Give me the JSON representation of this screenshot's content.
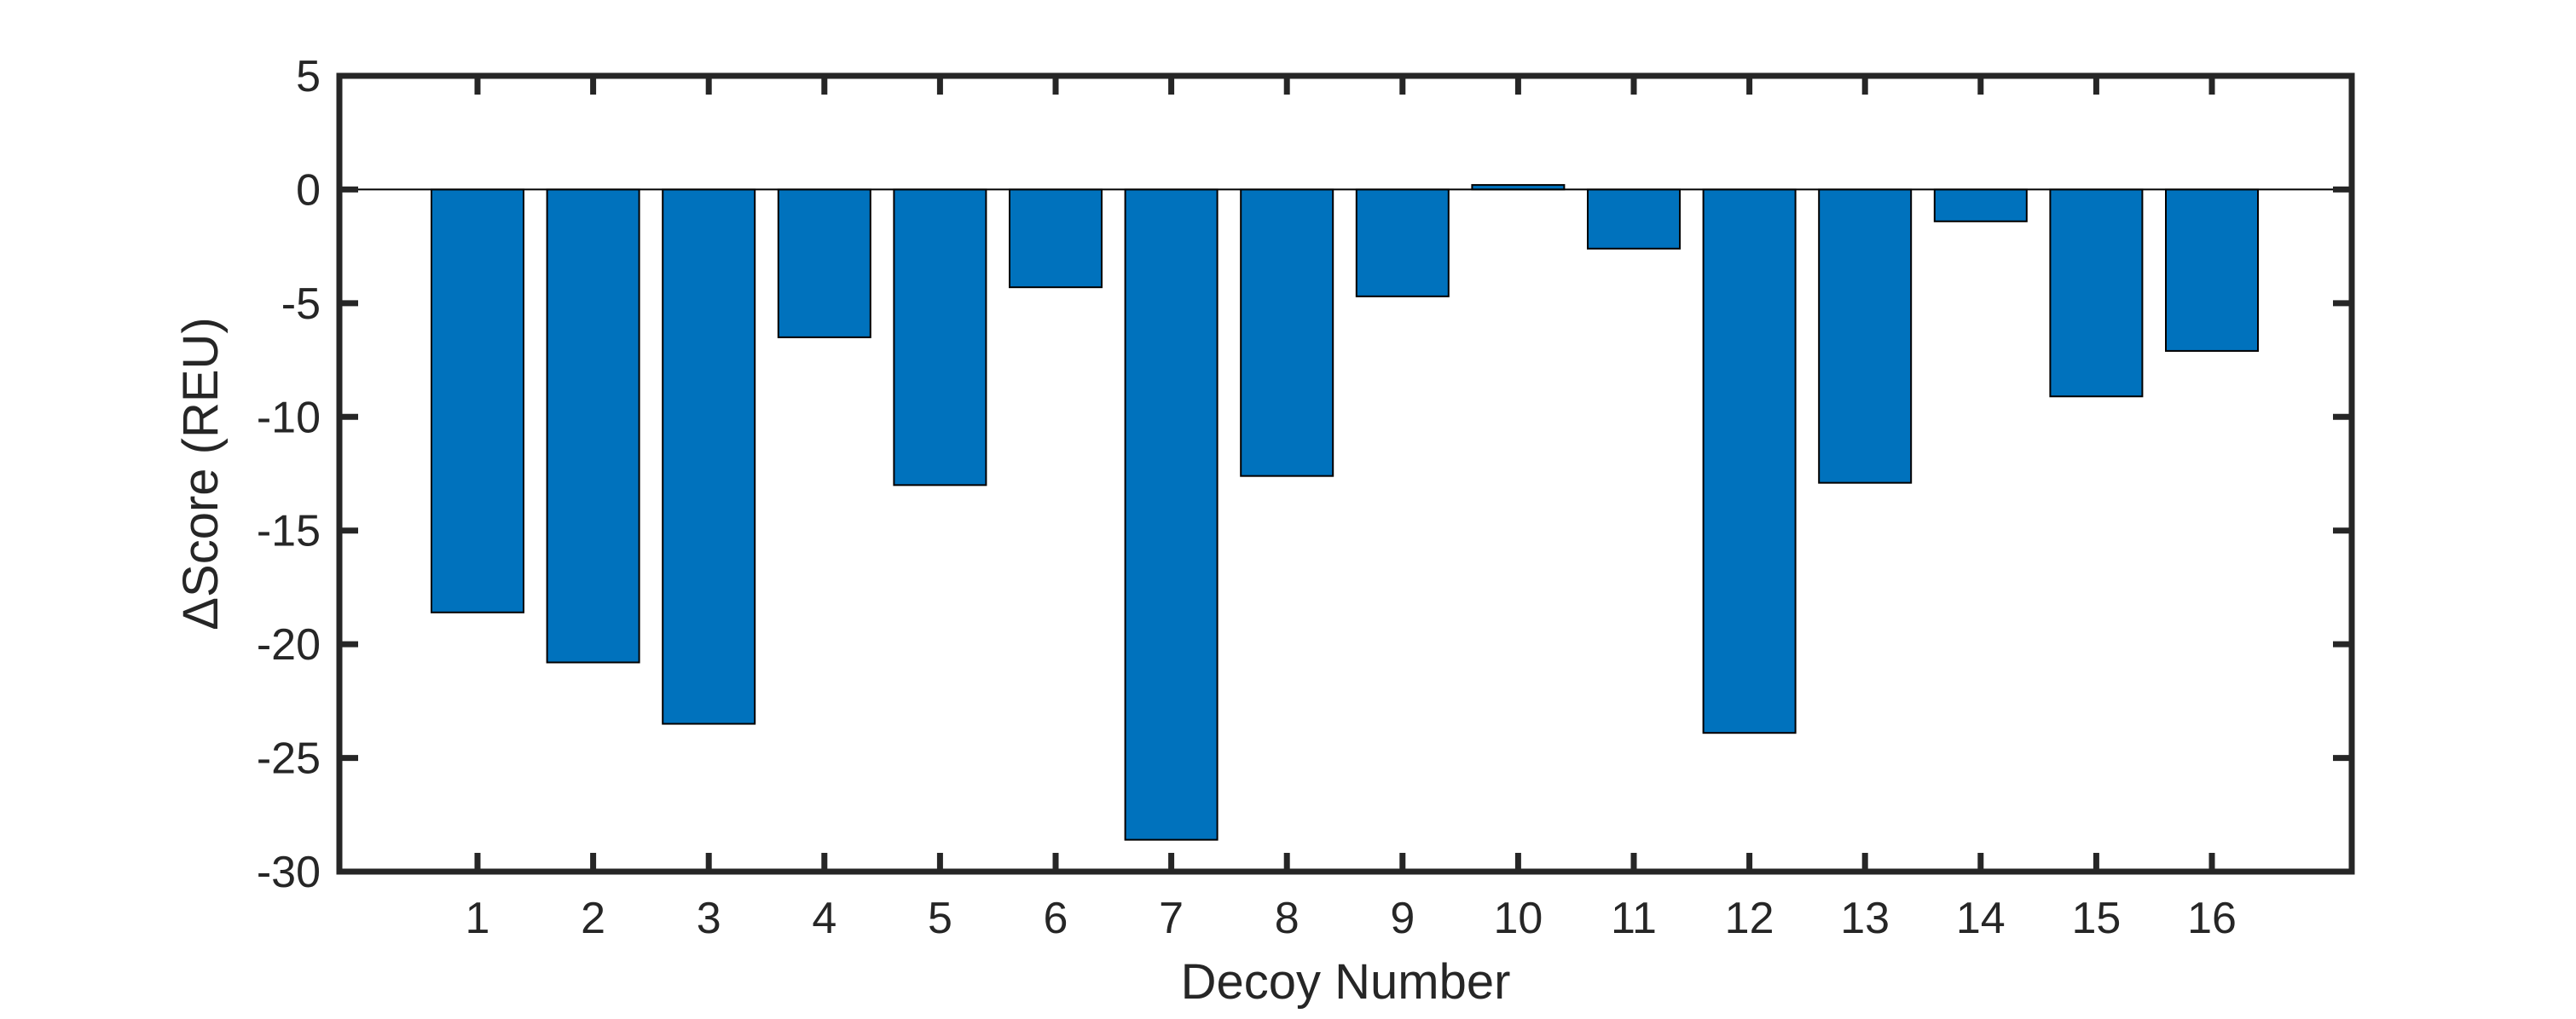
{
  "chart_data": {
    "type": "bar",
    "title": "",
    "xlabel": "Decoy Number",
    "ylabel": "ΔScore (REU)",
    "categories": [
      "1",
      "2",
      "3",
      "4",
      "5",
      "6",
      "7",
      "8",
      "9",
      "10",
      "11",
      "12",
      "13",
      "14",
      "15",
      "16"
    ],
    "values": [
      -18.6,
      -20.8,
      -23.5,
      -6.5,
      -13.0,
      -4.3,
      -28.6,
      -12.6,
      -4.7,
      0.2,
      -2.6,
      -23.9,
      -12.9,
      -1.4,
      -9.1,
      -7.1
    ],
    "ylim": [
      -30,
      5
    ],
    "yticks": [
      "5",
      "0",
      "-5",
      "-10",
      "-15",
      "-20",
      "-25",
      "-30"
    ],
    "grid": false,
    "bar_color": "#0072BD",
    "bar_edge_color": "#000000",
    "axis_color": "#262626"
  }
}
